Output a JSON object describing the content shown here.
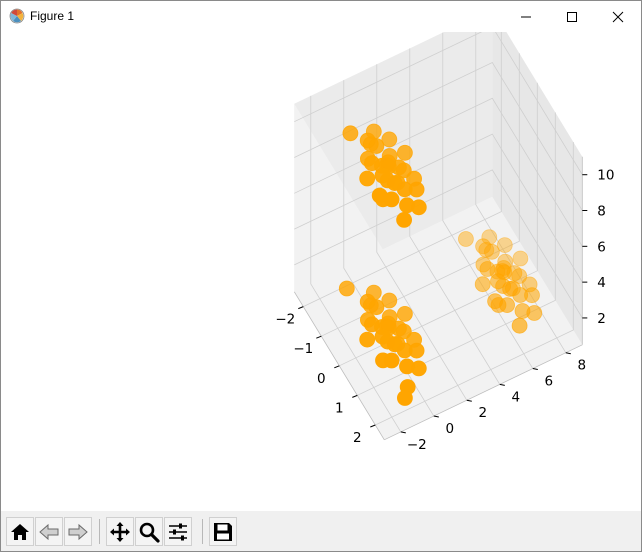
{
  "window": {
    "title": "Figure 1",
    "app_icon": "matplotlib-icon",
    "controls": [
      "minimize-icon",
      "maximize-icon",
      "close-icon"
    ]
  },
  "toolbar": {
    "buttons": [
      "home-icon",
      "back-arrow-icon",
      "forward-arrow-icon",
      "pan-icon",
      "zoom-magnifier-icon",
      "subplots-config-icon",
      "save-icon"
    ]
  },
  "chart_data": {
    "type": "scatter",
    "projection": "3d",
    "marker_color": "#ffa500",
    "x_ticks": [
      "−2",
      "−1",
      "0",
      "1",
      "2"
    ],
    "y_ticks": [
      "−2",
      "0",
      "2",
      "4",
      "6",
      "8"
    ],
    "z_ticks": [
      "2",
      "4",
      "6",
      "8",
      "10"
    ],
    "xlim": [
      -2.5,
      2.5
    ],
    "ylim": [
      -3,
      9
    ],
    "zlim": [
      0.5,
      11
    ],
    "grid": true,
    "clusters": [
      {
        "center": [
          0,
          0,
          1
        ],
        "points": [
          [
            -0.2,
            0.1,
            1
          ],
          [
            0.3,
            -0.4,
            1.2
          ],
          [
            -0.5,
            0.6,
            0.8
          ],
          [
            0.7,
            0.2,
            1.1
          ],
          [
            -0.9,
            -0.3,
            1.4
          ],
          [
            0.1,
            0.8,
            0.9
          ],
          [
            0.5,
            -0.9,
            0.7
          ],
          [
            -0.3,
            -0.7,
            1.3
          ],
          [
            1.1,
            -0.1,
            1
          ],
          [
            -1.2,
            0.4,
            1.1
          ],
          [
            0.2,
            0.3,
            0.6
          ],
          [
            -0.6,
            -0.1,
            1.5
          ],
          [
            0.9,
            0.7,
            1.2
          ],
          [
            -0.1,
            -1.2,
            1
          ],
          [
            0.4,
            1.1,
            0.8
          ],
          [
            -0.8,
            0.9,
            1.1
          ],
          [
            1.6,
            -0.6,
            0.9
          ],
          [
            -1.6,
            -0.8,
            1.2
          ],
          [
            0,
            0,
            1.3
          ],
          [
            0.6,
            -0.3,
            1.5
          ],
          [
            -0.4,
            0.4,
            0.7
          ],
          [
            0.8,
            -0.7,
            1.1
          ],
          [
            -1,
            0,
            0.9
          ],
          [
            0.2,
            -0.6,
            1.4
          ],
          [
            1.3,
            0.4,
            1
          ],
          [
            -0.7,
            -0.5,
            0.8
          ],
          [
            0.1,
            0.5,
            1.2
          ],
          [
            -0.3,
            1.3,
            1
          ],
          [
            1.9,
            -1.1,
            1
          ],
          [
            -0.2,
            -0.2,
            1.1
          ]
        ]
      },
      {
        "center": [
          0,
          7,
          1
        ],
        "points": [
          [
            -0.2,
            7.1,
            1
          ],
          [
            0.3,
            6.6,
            1.2
          ],
          [
            -0.5,
            7.6,
            0.8
          ],
          [
            0.7,
            7.2,
            1.1
          ],
          [
            -0.9,
            6.7,
            1.4
          ],
          [
            0.1,
            7.8,
            0.9
          ],
          [
            0.5,
            6.1,
            0.7
          ],
          [
            -0.3,
            6.3,
            1.3
          ],
          [
            1.1,
            6.9,
            1
          ],
          [
            -1.2,
            7.4,
            1.1
          ],
          [
            0.2,
            7.3,
            0.6
          ],
          [
            -0.6,
            6.9,
            1.5
          ],
          [
            0.9,
            7.7,
            1.2
          ],
          [
            -0.1,
            5.8,
            1
          ],
          [
            0.4,
            8.1,
            0.8
          ],
          [
            -0.8,
            7.9,
            1.1
          ],
          [
            1.4,
            6.4,
            0.9
          ],
          [
            -1.4,
            6.2,
            1.2
          ],
          [
            0,
            7,
            1.3
          ],
          [
            0.6,
            6.7,
            1.5
          ],
          [
            -0.4,
            7.4,
            0.7
          ],
          [
            0.8,
            6.3,
            1.1
          ],
          [
            -1,
            7,
            0.9
          ],
          [
            0.2,
            6.4,
            1.4
          ],
          [
            1.3,
            7.4,
            1
          ],
          [
            -0.7,
            6.5,
            0.8
          ],
          [
            0.1,
            7.5,
            1.2
          ],
          [
            -0.3,
            8.3,
            1
          ],
          [
            -0.2,
            6.8,
            1.1
          ],
          [
            0.5,
            5.9,
            1
          ]
        ]
      },
      {
        "center": [
          0,
          0,
          10
        ],
        "points": [
          [
            -0.2,
            0.1,
            10
          ],
          [
            0.3,
            -0.4,
            10.2
          ],
          [
            -0.5,
            0.6,
            9.8
          ],
          [
            0.7,
            0.2,
            10.1
          ],
          [
            -0.9,
            -0.3,
            10.4
          ],
          [
            0.1,
            0.8,
            9.9
          ],
          [
            0.5,
            -0.9,
            9.7
          ],
          [
            -0.3,
            -0.7,
            10.3
          ],
          [
            1.1,
            -0.1,
            10
          ],
          [
            -1.2,
            0.4,
            10.1
          ],
          [
            0.2,
            0.3,
            9.6
          ],
          [
            -0.6,
            -0.1,
            10.5
          ],
          [
            0.9,
            0.7,
            10.2
          ],
          [
            -0.1,
            -1.2,
            10
          ],
          [
            0.4,
            1.1,
            9.8
          ],
          [
            -0.8,
            0.9,
            10.1
          ],
          [
            1.4,
            -0.6,
            9.9
          ],
          [
            -1.4,
            -0.8,
            10.2
          ],
          [
            0,
            0,
            10.3
          ],
          [
            0.6,
            -0.3,
            10.5
          ],
          [
            -0.4,
            0.4,
            9.7
          ],
          [
            0.8,
            -0.7,
            10.1
          ],
          [
            -1,
            0,
            9.9
          ],
          [
            0.2,
            -0.6,
            10.4
          ],
          [
            1.3,
            0.4,
            10
          ],
          [
            -0.7,
            -0.5,
            9.8
          ],
          [
            0.1,
            0.5,
            10.2
          ],
          [
            -0.3,
            1.3,
            10
          ],
          [
            -0.2,
            -0.2,
            10.1
          ],
          [
            0.5,
            -1.1,
            10
          ]
        ]
      }
    ]
  }
}
